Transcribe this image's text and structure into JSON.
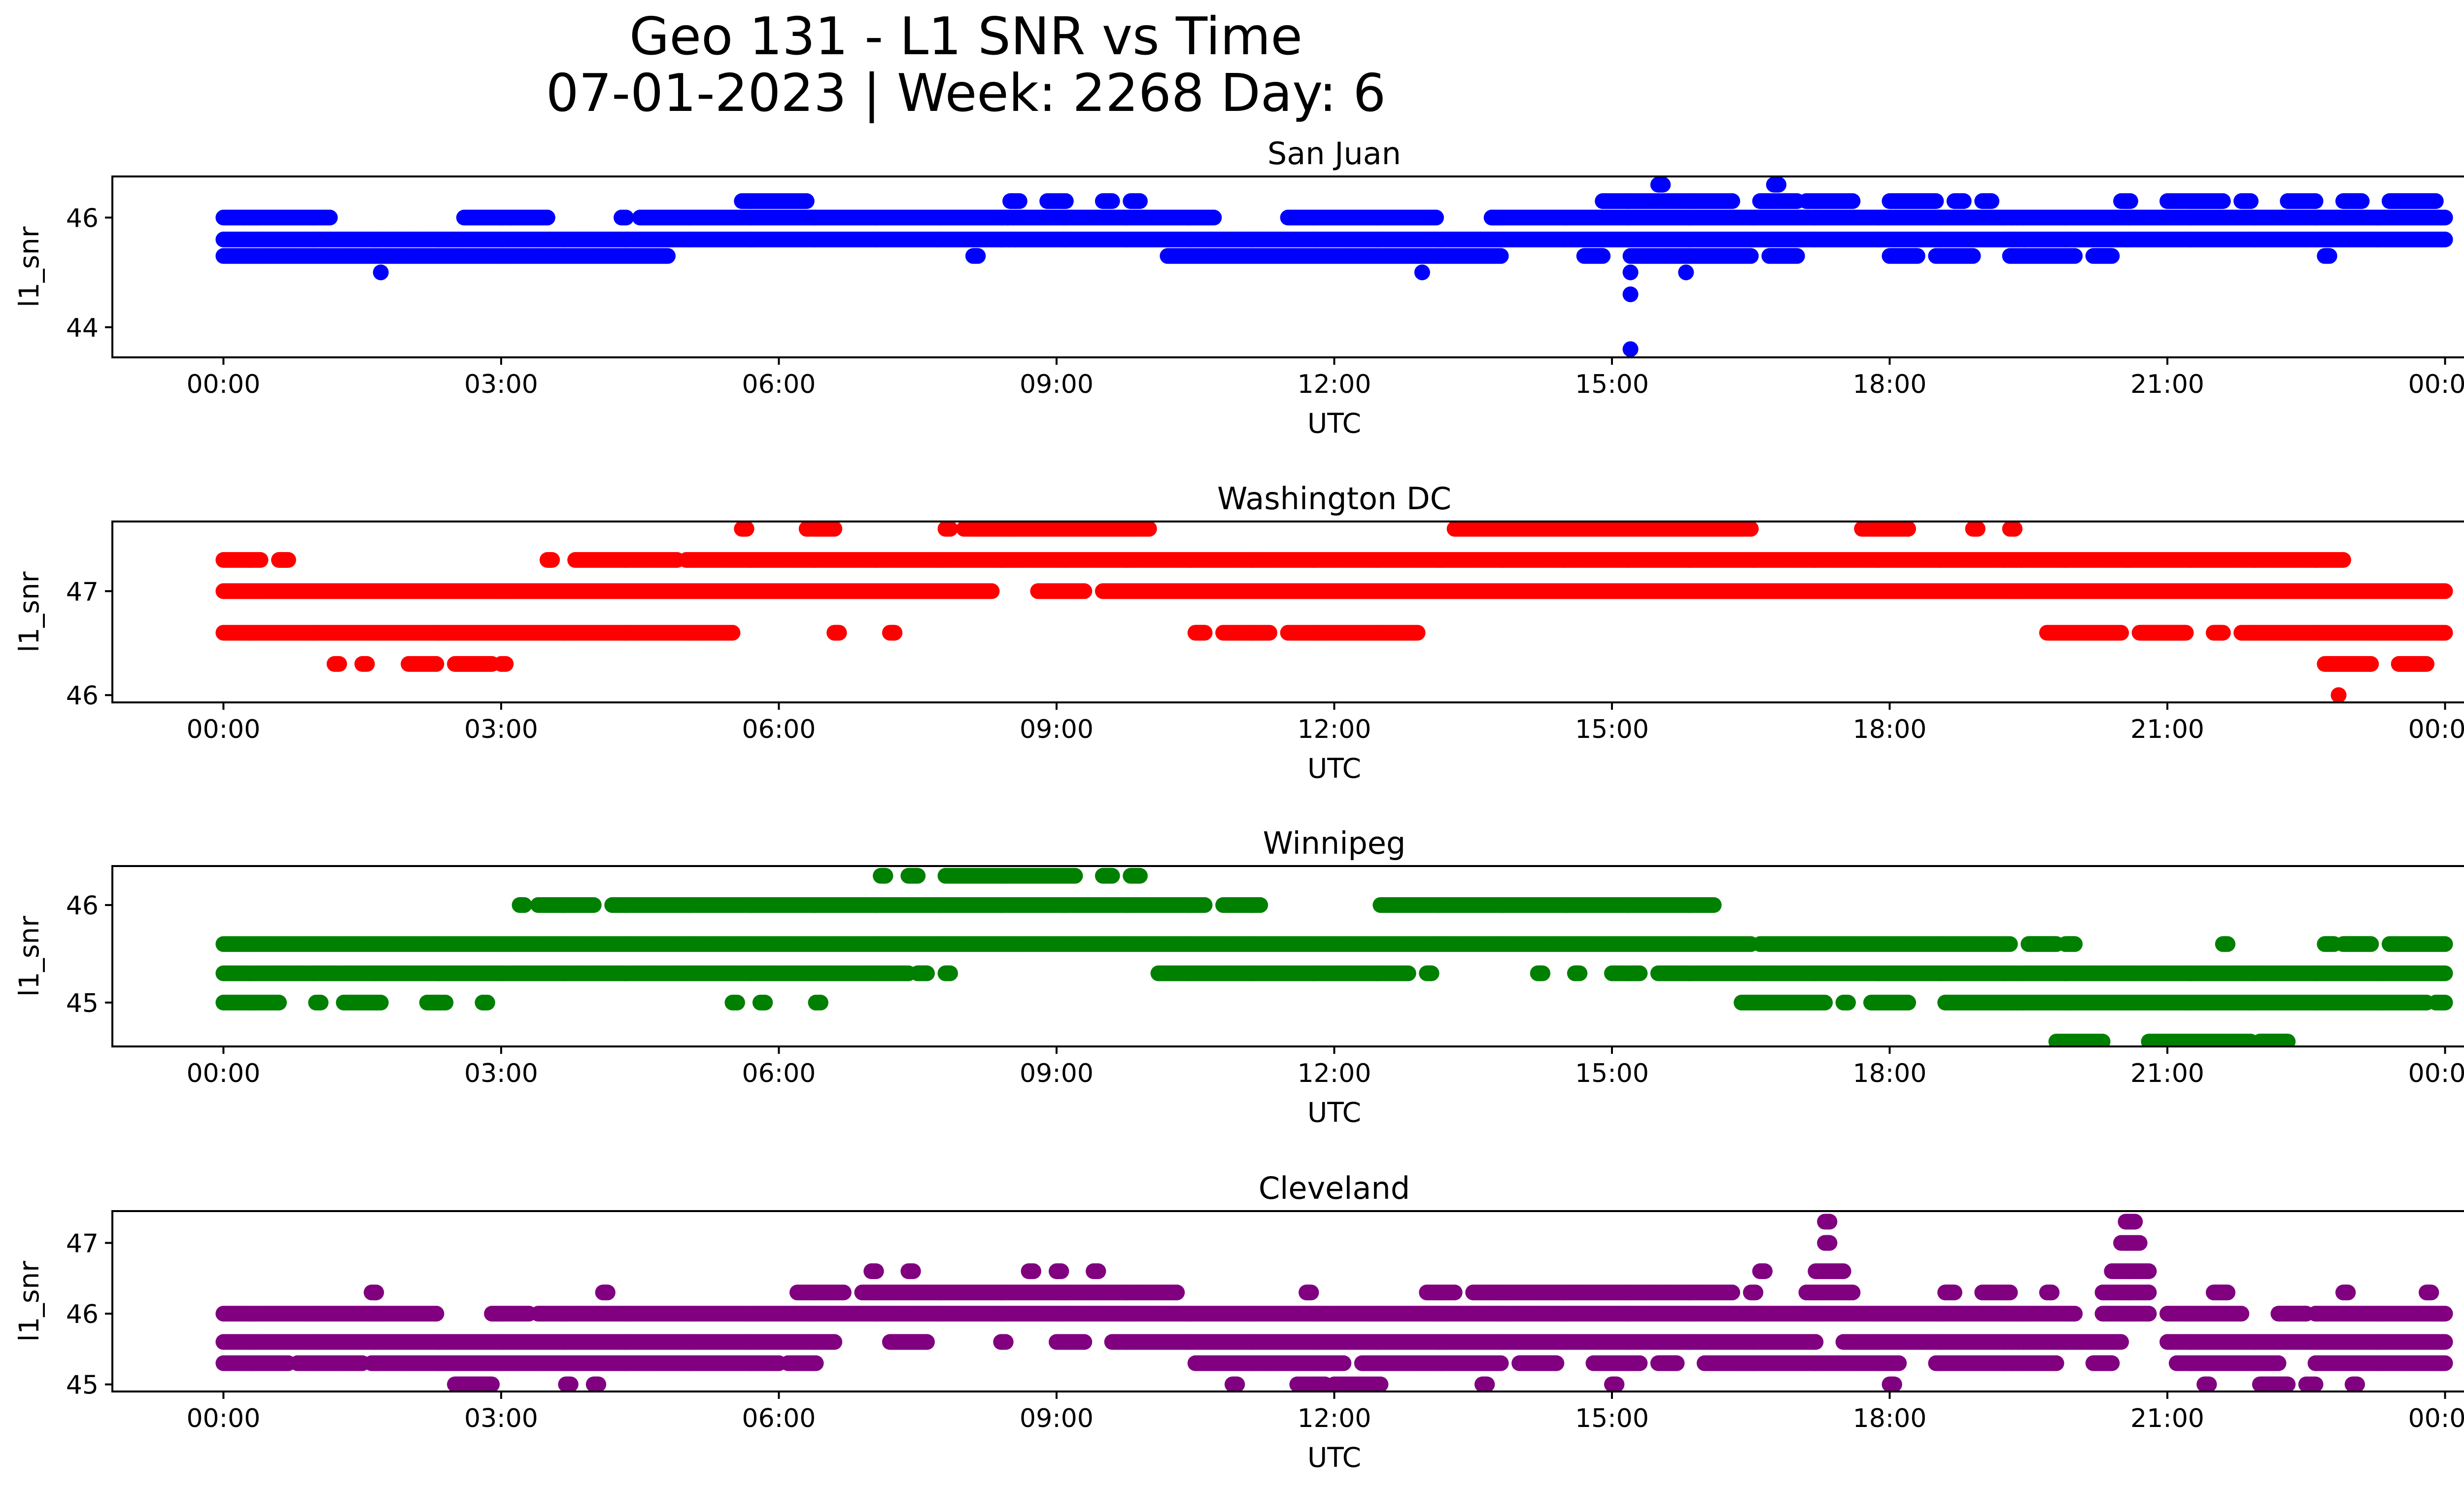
{
  "figure": {
    "title_line1": "Geo 131 - L1 SNR vs Time",
    "title_line2": "07-01-2023 | Week: 2268 Day: 6"
  },
  "chart_data": [
    {
      "type": "scatter",
      "title": "San Juan",
      "xlabel": "UTC",
      "ylabel": "l1_snr",
      "color": "#0000ff",
      "xlim_hours": [
        -1.2,
        25.2
      ],
      "ylim": [
        43.45,
        46.75
      ],
      "yticks": [
        44,
        46
      ],
      "xtick_labels": [
        "00:00",
        "03:00",
        "06:00",
        "09:00",
        "12:00",
        "15:00",
        "18:00",
        "21:00",
        "00:00"
      ],
      "xtick_hours": [
        0,
        3,
        6,
        9,
        12,
        15,
        18,
        21,
        24
      ],
      "bands": [
        {
          "y": 45.6,
          "ranges": [
            [
              0,
              24
            ]
          ]
        },
        {
          "y": 46.0,
          "ranges": [
            [
              0,
              1.15
            ],
            [
              2.6,
              3.5
            ],
            [
              4.3,
              4.35
            ],
            [
              4.5,
              10.7
            ],
            [
              11.5,
              13.1
            ],
            [
              13.7,
              24
            ]
          ]
        },
        {
          "y": 45.3,
          "ranges": [
            [
              0,
              4.8
            ],
            [
              8.1,
              8.15
            ],
            [
              10.2,
              13.8
            ],
            [
              14.7,
              14.9
            ],
            [
              15.2,
              16.5
            ],
            [
              16.7,
              17.0
            ],
            [
              18.0,
              18.3
            ],
            [
              18.5,
              18.9
            ],
            [
              19.3,
              20.0
            ],
            [
              20.2,
              20.4
            ],
            [
              22.7,
              22.75
            ]
          ]
        },
        {
          "y": 46.3,
          "ranges": [
            [
              5.6,
              6.3
            ],
            [
              8.5,
              8.6
            ],
            [
              8.9,
              9.1
            ],
            [
              9.5,
              9.6
            ],
            [
              9.8,
              9.9
            ],
            [
              14.9,
              16.3
            ],
            [
              16.6,
              17.0
            ],
            [
              17.1,
              17.6
            ],
            [
              18.0,
              18.5
            ],
            [
              18.7,
              18.8
            ],
            [
              19.0,
              19.1
            ],
            [
              20.5,
              20.6
            ],
            [
              21.0,
              21.6
            ],
            [
              21.8,
              21.9
            ],
            [
              22.3,
              22.6
            ],
            [
              22.9,
              23.1
            ],
            [
              23.4,
              23.9
            ]
          ]
        },
        {
          "y": 46.6,
          "ranges": [
            [
              15.5,
              15.55
            ],
            [
              16.75,
              16.8
            ]
          ]
        }
      ],
      "points": [
        [
          1.7,
          45.0
        ],
        [
          12.95,
          45.0
        ],
        [
          15.2,
          45.0
        ],
        [
          15.2,
          44.6
        ],
        [
          15.2,
          43.6
        ],
        [
          15.8,
          45.0
        ]
      ]
    },
    {
      "type": "scatter",
      "title": "Washington DC",
      "xlabel": "UTC",
      "ylabel": "l1_snr",
      "color": "#ff0000",
      "xlim_hours": [
        -1.2,
        25.2
      ],
      "ylim": [
        45.93,
        47.67
      ],
      "yticks": [
        46,
        47
      ],
      "xtick_labels": [
        "00:00",
        "03:00",
        "06:00",
        "09:00",
        "12:00",
        "15:00",
        "18:00",
        "21:00",
        "00:00"
      ],
      "xtick_hours": [
        0,
        3,
        6,
        9,
        12,
        15,
        18,
        21,
        24
      ],
      "bands": [
        {
          "y": 47.0,
          "ranges": [
            [
              0,
              8.3
            ],
            [
              8.8,
              9.3
            ],
            [
              9.5,
              24
            ]
          ]
        },
        {
          "y": 46.6,
          "ranges": [
            [
              0,
              5.5
            ],
            [
              6.6,
              6.65
            ],
            [
              7.2,
              7.25
            ],
            [
              10.5,
              10.6
            ],
            [
              10.8,
              11.3
            ],
            [
              11.5,
              12.9
            ],
            [
              19.7,
              20.5
            ],
            [
              20.7,
              21.2
            ],
            [
              21.5,
              21.6
            ],
            [
              21.8,
              24
            ]
          ]
        },
        {
          "y": 47.3,
          "ranges": [
            [
              0,
              0.4
            ],
            [
              0.6,
              0.7
            ],
            [
              3.5,
              3.55
            ],
            [
              3.8,
              4.9
            ],
            [
              5.0,
              22.9
            ]
          ]
        },
        {
          "y": 47.6,
          "ranges": [
            [
              5.6,
              5.65
            ],
            [
              6.3,
              6.6
            ],
            [
              7.8,
              7.85
            ],
            [
              8.0,
              10.0
            ],
            [
              13.3,
              16.5
            ],
            [
              17.7,
              18.2
            ],
            [
              18.9,
              18.95
            ],
            [
              19.3,
              19.35
            ]
          ]
        },
        {
          "y": 46.3,
          "ranges": [
            [
              1.2,
              1.25
            ],
            [
              1.5,
              1.55
            ],
            [
              2.0,
              2.3
            ],
            [
              2.5,
              2.9
            ],
            [
              3.0,
              3.05
            ],
            [
              22.7,
              23.2
            ],
            [
              23.5,
              23.8
            ]
          ]
        }
      ],
      "points": [
        [
          22.85,
          46.0
        ]
      ]
    },
    {
      "type": "scatter",
      "title": "Winnipeg",
      "xlabel": "UTC",
      "ylabel": "l1_snr",
      "color": "#008000",
      "xlim_hours": [
        -1.2,
        25.2
      ],
      "ylim": [
        44.55,
        46.4
      ],
      "yticks": [
        45,
        46
      ],
      "xtick_labels": [
        "00:00",
        "03:00",
        "06:00",
        "09:00",
        "12:00",
        "15:00",
        "18:00",
        "21:00",
        "00:00"
      ],
      "xtick_hours": [
        0,
        3,
        6,
        9,
        12,
        15,
        18,
        21,
        24
      ],
      "bands": [
        {
          "y": 45.6,
          "ranges": [
            [
              0,
              16.5
            ],
            [
              16.6,
              19.3
            ],
            [
              19.5,
              19.8
            ],
            [
              19.9,
              20.0
            ],
            [
              21.6,
              21.65
            ],
            [
              22.7,
              22.8
            ],
            [
              22.9,
              23.2
            ],
            [
              23.4,
              24
            ]
          ]
        },
        {
          "y": 45.3,
          "ranges": [
            [
              0,
              7.4
            ],
            [
              7.5,
              7.6
            ],
            [
              7.8,
              7.85
            ],
            [
              10.1,
              12.8
            ],
            [
              13.0,
              13.05
            ],
            [
              14.2,
              14.25
            ],
            [
              14.6,
              14.65
            ],
            [
              15.0,
              15.3
            ],
            [
              15.5,
              24
            ]
          ]
        },
        {
          "y": 46.0,
          "ranges": [
            [
              3.2,
              3.25
            ],
            [
              3.4,
              4.0
            ],
            [
              4.2,
              10.6
            ],
            [
              10.8,
              11.2
            ],
            [
              12.5,
              16.1
            ]
          ]
        },
        {
          "y": 45.0,
          "ranges": [
            [
              0,
              0.6
            ],
            [
              1.0,
              1.05
            ],
            [
              1.3,
              1.7
            ],
            [
              2.2,
              2.4
            ],
            [
              2.8,
              2.85
            ],
            [
              5.5,
              5.55
            ],
            [
              5.8,
              5.85
            ],
            [
              6.4,
              6.45
            ],
            [
              16.4,
              17.3
            ],
            [
              17.5,
              17.55
            ],
            [
              17.8,
              18.2
            ],
            [
              18.6,
              23.8
            ],
            [
              23.9,
              24
            ]
          ]
        },
        {
          "y": 46.3,
          "ranges": [
            [
              7.1,
              7.15
            ],
            [
              7.4,
              7.5
            ],
            [
              7.8,
              9.2
            ],
            [
              9.5,
              9.6
            ],
            [
              9.8,
              9.9
            ]
          ]
        },
        {
          "y": 44.6,
          "ranges": [
            [
              19.8,
              20.3
            ],
            [
              20.8,
              21.9
            ],
            [
              22.0,
              22.3
            ]
          ]
        }
      ],
      "points": []
    },
    {
      "type": "scatter",
      "title": "Cleveland",
      "xlabel": "UTC",
      "ylabel": "l1_snr",
      "color": "#800080",
      "xlim_hours": [
        -1.2,
        25.2
      ],
      "ylim": [
        44.9,
        47.45
      ],
      "yticks": [
        45,
        46,
        47
      ],
      "xtick_labels": [
        "00:00",
        "03:00",
        "06:00",
        "09:00",
        "12:00",
        "15:00",
        "18:00",
        "21:00",
        "00:00"
      ],
      "xtick_hours": [
        0,
        3,
        6,
        9,
        12,
        15,
        18,
        21,
        24
      ],
      "bands": [
        {
          "y": 45.6,
          "ranges": [
            [
              0,
              6.6
            ],
            [
              7.2,
              7.6
            ],
            [
              8.4,
              8.45
            ],
            [
              9.0,
              9.3
            ],
            [
              9.6,
              17.2
            ],
            [
              17.5,
              20.5
            ],
            [
              21.0,
              24
            ]
          ]
        },
        {
          "y": 46.0,
          "ranges": [
            [
              0,
              2.3
            ],
            [
              2.9,
              3.3
            ],
            [
              3.4,
              20.0
            ],
            [
              20.3,
              20.8
            ],
            [
              21.0,
              21.8
            ],
            [
              22.2,
              22.5
            ],
            [
              22.6,
              24
            ]
          ]
        },
        {
          "y": 45.3,
          "ranges": [
            [
              0,
              0.7
            ],
            [
              0.8,
              1.5
            ],
            [
              1.6,
              6.0
            ],
            [
              6.1,
              6.4
            ],
            [
              10.5,
              12.1
            ],
            [
              12.3,
              13.8
            ],
            [
              14.0,
              14.4
            ],
            [
              14.8,
              15.3
            ],
            [
              15.5,
              15.7
            ],
            [
              16.0,
              18.1
            ],
            [
              18.5,
              19.8
            ],
            [
              20.2,
              20.4
            ],
            [
              21.1,
              22.2
            ],
            [
              22.6,
              24
            ]
          ]
        },
        {
          "y": 46.3,
          "ranges": [
            [
              1.6,
              1.65
            ],
            [
              4.1,
              4.15
            ],
            [
              6.2,
              6.7
            ],
            [
              6.9,
              10.3
            ],
            [
              11.7,
              11.75
            ],
            [
              13.0,
              13.3
            ],
            [
              13.5,
              16.3
            ],
            [
              16.5,
              16.55
            ],
            [
              17.1,
              17.6
            ],
            [
              18.6,
              18.7
            ],
            [
              19.0,
              19.3
            ],
            [
              19.7,
              19.75
            ],
            [
              20.3,
              20.8
            ],
            [
              21.5,
              21.65
            ],
            [
              22.9,
              22.95
            ],
            [
              23.8,
              23.85
            ]
          ]
        },
        {
          "y": 45.0,
          "ranges": [
            [
              2.5,
              2.9
            ],
            [
              3.7,
              3.75
            ],
            [
              4.0,
              4.05
            ],
            [
              10.9,
              10.95
            ],
            [
              11.6,
              11.9
            ],
            [
              12.0,
              12.5
            ],
            [
              13.6,
              13.65
            ],
            [
              15.0,
              15.05
            ],
            [
              18.0,
              18.05
            ],
            [
              21.4,
              21.45
            ],
            [
              22.0,
              22.3
            ],
            [
              22.5,
              22.6
            ],
            [
              23.0,
              23.05
            ]
          ]
        },
        {
          "y": 46.6,
          "ranges": [
            [
              7.0,
              7.05
            ],
            [
              7.4,
              7.45
            ],
            [
              8.7,
              8.75
            ],
            [
              9.0,
              9.05
            ],
            [
              9.4,
              9.45
            ],
            [
              16.6,
              16.65
            ],
            [
              17.2,
              17.5
            ],
            [
              20.4,
              20.8
            ]
          ]
        },
        {
          "y": 47.0,
          "ranges": [
            [
              17.3,
              17.35
            ],
            [
              20.5,
              20.7
            ]
          ]
        },
        {
          "y": 47.3,
          "ranges": [
            [
              17.3,
              17.35
            ],
            [
              20.55,
              20.65
            ]
          ]
        }
      ],
      "points": []
    }
  ]
}
